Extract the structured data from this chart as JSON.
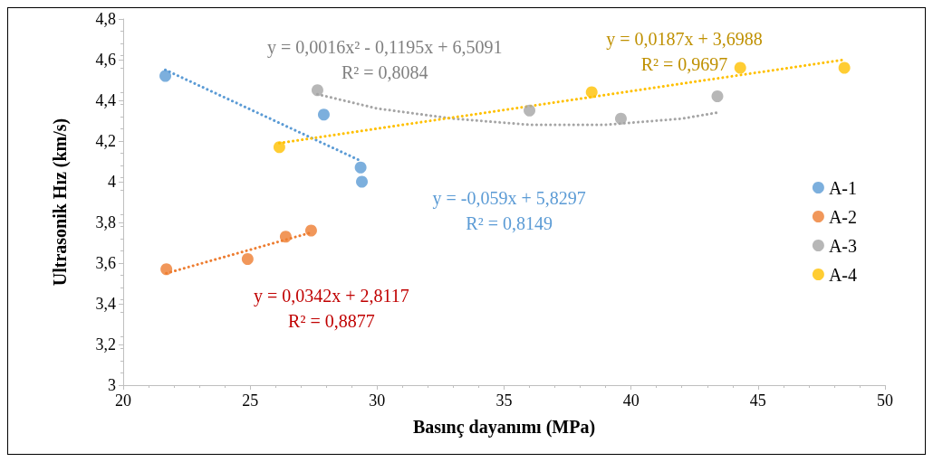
{
  "chart_data": {
    "type": "scatter",
    "xlabel": "Basınç dayanımı (MPa)",
    "ylabel": "Ultrasonik Hız (km/s)",
    "xlim": [
      20,
      50
    ],
    "xticks": [
      20,
      25,
      30,
      35,
      40,
      45,
      50
    ],
    "ylim": [
      3,
      4.8
    ],
    "yticks": [
      3,
      {
        "value": 3.2,
        "label": "3,2"
      },
      {
        "value": 3.4,
        "label": "3,4"
      },
      {
        "value": 3.6,
        "label": "3,6"
      },
      {
        "value": 3.8,
        "label": "3,8"
      },
      4,
      {
        "value": 4.2,
        "label": "4,2"
      },
      {
        "value": 4.4,
        "label": "4,4"
      },
      {
        "value": 4.6,
        "label": "4,6"
      },
      {
        "value": 4.8,
        "label": "4,8"
      }
    ],
    "grid": false,
    "legend": "right",
    "marker": "circle",
    "series": [
      {
        "name": "A-1",
        "color": "#5b9bd5",
        "x": [
          21.66,
          27.9,
          29.35,
          29.4
        ],
        "values": [
          4.52,
          4.33,
          4.07,
          4.0
        ]
      },
      {
        "name": "A-2",
        "color": "#ed7d31",
        "x": [
          21.7,
          24.9,
          26.4,
          27.4
        ],
        "values": [
          3.57,
          3.62,
          3.73,
          3.76
        ]
      },
      {
        "name": "A-3",
        "color": "#a5a5a5",
        "x": [
          27.65,
          36.0,
          39.6,
          43.4
        ],
        "values": [
          4.45,
          4.35,
          4.31,
          4.42
        ]
      },
      {
        "name": "A-4",
        "color": "#ffc000",
        "x": [
          26.15,
          38.45,
          44.3,
          48.4
        ],
        "values": [
          4.17,
          4.44,
          4.56,
          4.56
        ]
      },
      {
        "type": "line",
        "color": "#5b9bd5",
        "line_style": "dotted",
        "marker": "none",
        "x": [
          21.66,
          29.4
        ],
        "values": [
          4.55,
          4.1
        ]
      },
      {
        "type": "line",
        "color": "#ed7d31",
        "line_style": "dotted",
        "marker": "none",
        "x": [
          21.7,
          27.4
        ],
        "values": [
          3.55,
          3.75
        ]
      },
      {
        "type": "line",
        "color": "#a5a5a5",
        "line_style": "dotted",
        "marker": "none",
        "x": [
          27.65,
          30,
          33,
          36,
          39,
          42,
          43.4
        ],
        "values": [
          4.43,
          4.36,
          4.31,
          4.28,
          4.28,
          4.31,
          4.34
        ]
      },
      {
        "type": "line",
        "color": "#ffc000",
        "line_style": "dotted",
        "marker": "none",
        "x": [
          26.15,
          48.4
        ],
        "values": [
          4.19,
          4.6
        ]
      }
    ],
    "annotations": [
      "y = 0,0016x² - 0,1195x + 6,5091\nR² = 0,8084",
      "y = -0,059x + 5,8297\nR² = 0,8149",
      "y = 0,0342x + 2,8117\nR² = 0,8877",
      "y = 0,0187x + 3,6988\nR² = 0,9697"
    ]
  }
}
